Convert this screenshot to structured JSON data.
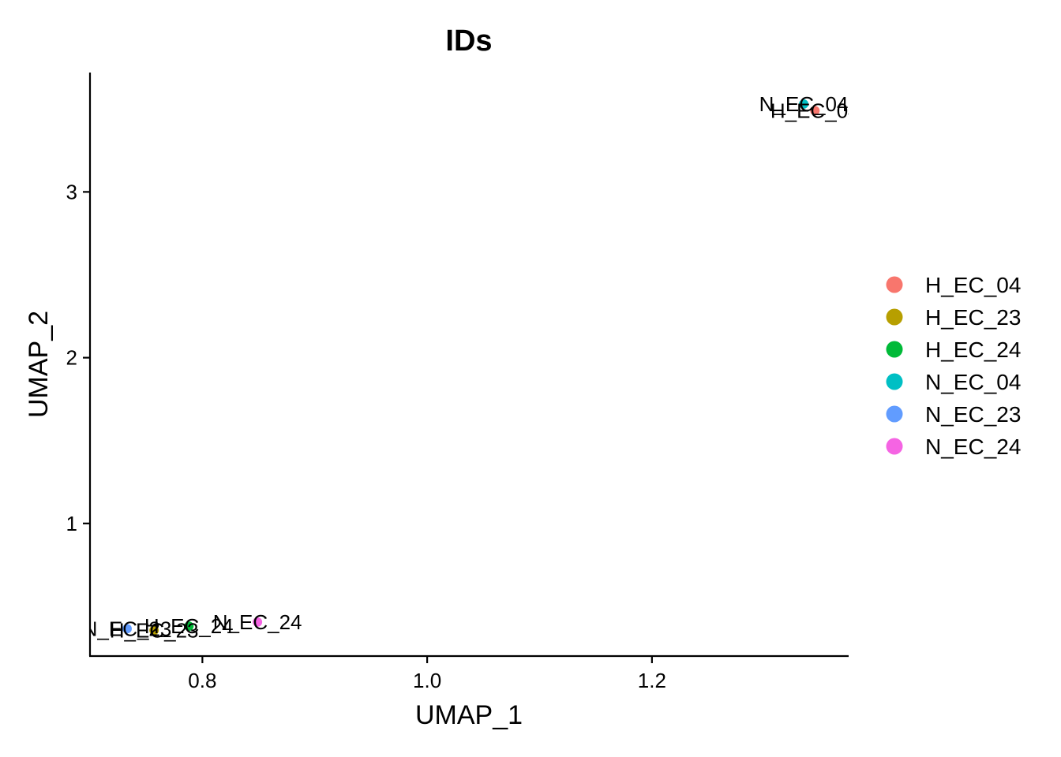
{
  "chart_data": {
    "type": "scatter",
    "title": "IDs",
    "xlabel": "UMAP_1",
    "ylabel": "UMAP_2",
    "xlim": [
      0.7,
      1.375
    ],
    "ylim": [
      0.2,
      3.72
    ],
    "xticks": [
      0.8,
      1.0,
      1.2
    ],
    "xtick_labels": [
      "0.8",
      "1.0",
      "1.2"
    ],
    "yticks": [
      1,
      2,
      3
    ],
    "ytick_labels": [
      "1",
      "2",
      "3"
    ],
    "grid": false,
    "legend_position": "right",
    "series": [
      {
        "name": "H_EC_04",
        "color": "#F8766D",
        "x": 1.345,
        "y": 3.49
      },
      {
        "name": "H_EC_23",
        "color": "#B79F00",
        "x": 0.757,
        "y": 0.355
      },
      {
        "name": "H_EC_24",
        "color": "#00BA38",
        "x": 0.788,
        "y": 0.38
      },
      {
        "name": "N_EC_04",
        "color": "#00BFC4",
        "x": 1.335,
        "y": 3.53
      },
      {
        "name": "N_EC_23",
        "color": "#619CFF",
        "x": 0.733,
        "y": 0.365
      },
      {
        "name": "N_EC_24",
        "color": "#F564E3",
        "x": 0.849,
        "y": 0.405
      }
    ]
  }
}
